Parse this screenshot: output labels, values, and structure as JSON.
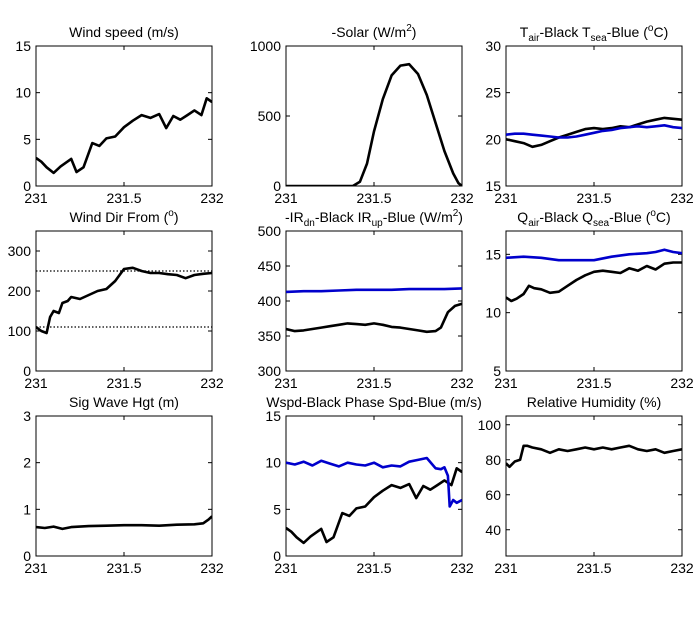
{
  "chart_data": [
    {
      "type": "line",
      "title": "Wind speed (m/s)",
      "xlim": [
        231,
        232
      ],
      "ylim": [
        0,
        15
      ],
      "xticks": [
        "231",
        "231.5",
        "232"
      ],
      "yticks": [
        "0",
        "5",
        "10",
        "15"
      ],
      "series": [
        {
          "color": "#000000",
          "x": [
            231,
            231.03,
            231.06,
            231.1,
            231.14,
            231.17,
            231.2,
            231.23,
            231.27,
            231.32,
            231.36,
            231.4,
            231.45,
            231.5,
            231.55,
            231.6,
            231.65,
            231.7,
            231.74,
            231.78,
            231.82,
            231.86,
            231.9,
            231.94,
            231.97,
            232
          ],
          "y": [
            3,
            2.6,
            2,
            1.4,
            2.1,
            2.5,
            2.9,
            1.5,
            2,
            4.6,
            4.3,
            5.1,
            5.3,
            6.3,
            7,
            7.6,
            7.3,
            7.7,
            6.2,
            7.5,
            7.1,
            7.6,
            8.1,
            7.6,
            9.4,
            9
          ]
        }
      ]
    },
    {
      "type": "line",
      "title_parts": [
        "-Solar (W/m",
        "2",
        ")"
      ],
      "xlim": [
        231,
        232
      ],
      "ylim": [
        0,
        1000
      ],
      "xticks": [
        "231",
        "231.5",
        "232"
      ],
      "yticks": [
        "0",
        "500",
        "1000"
      ],
      "series": [
        {
          "color": "#000000",
          "x": [
            231,
            231.38,
            231.42,
            231.46,
            231.5,
            231.55,
            231.6,
            231.65,
            231.7,
            231.75,
            231.8,
            231.85,
            231.9,
            231.95,
            231.98,
            232
          ],
          "y": [
            0,
            0,
            30,
            160,
            390,
            620,
            790,
            860,
            870,
            800,
            650,
            450,
            250,
            90,
            20,
            0
          ]
        }
      ]
    },
    {
      "type": "line",
      "title_parts": [
        "T",
        "air",
        "-Black  T",
        "sea",
        "-Blue (",
        "o",
        "C)"
      ],
      "xlim": [
        231,
        232
      ],
      "ylim": [
        15,
        30
      ],
      "xticks": [
        "231",
        "231.5",
        "232"
      ],
      "yticks": [
        "15",
        "20",
        "25",
        "30"
      ],
      "series": [
        {
          "color": "#000000",
          "x": [
            231,
            231.05,
            231.1,
            231.15,
            231.2,
            231.25,
            231.3,
            231.35,
            231.4,
            231.45,
            231.5,
            231.55,
            231.6,
            231.65,
            231.7,
            231.75,
            231.8,
            231.85,
            231.9,
            231.95,
            232
          ],
          "y": [
            20,
            19.8,
            19.6,
            19.2,
            19.4,
            19.8,
            20.2,
            20.5,
            20.8,
            21.1,
            21.2,
            21.1,
            21.2,
            21.4,
            21.3,
            21.6,
            21.9,
            22.1,
            22.3,
            22.2,
            22.1
          ]
        },
        {
          "color": "#0000cc",
          "x": [
            231,
            231.05,
            231.1,
            231.15,
            231.2,
            231.25,
            231.3,
            231.35,
            231.4,
            231.45,
            231.5,
            231.55,
            231.6,
            231.65,
            231.7,
            231.75,
            231.8,
            231.85,
            231.9,
            231.95,
            232
          ],
          "y": [
            20.5,
            20.6,
            20.6,
            20.5,
            20.4,
            20.3,
            20.2,
            20.2,
            20.3,
            20.5,
            20.7,
            20.9,
            21,
            21.2,
            21.3,
            21.4,
            21.3,
            21.4,
            21.5,
            21.3,
            21.2
          ]
        }
      ]
    },
    {
      "type": "line",
      "title_parts": [
        "Wind Dir From (",
        "o",
        ")"
      ],
      "xlim": [
        231,
        232
      ],
      "ylim": [
        0,
        350
      ],
      "xticks": [
        "231",
        "231.5",
        "232"
      ],
      "yticks": [
        "0",
        "100",
        "200",
        "300"
      ],
      "reference_lines": [
        110,
        250
      ],
      "series": [
        {
          "color": "#000000",
          "x": [
            231,
            231.03,
            231.06,
            231.08,
            231.1,
            231.13,
            231.15,
            231.18,
            231.2,
            231.25,
            231.3,
            231.35,
            231.4,
            231.45,
            231.5,
            231.55,
            231.6,
            231.65,
            231.7,
            231.75,
            231.8,
            231.85,
            231.9,
            231.95,
            232
          ],
          "y": [
            110,
            100,
            95,
            135,
            150,
            145,
            170,
            175,
            185,
            180,
            190,
            200,
            205,
            225,
            255,
            258,
            250,
            245,
            245,
            242,
            240,
            232,
            240,
            243,
            245
          ]
        }
      ]
    },
    {
      "type": "line",
      "title_parts": [
        "-IR",
        "dn",
        "-Black  IR",
        "up",
        "-Blue (W/m",
        "2",
        ")"
      ],
      "xlim": [
        231,
        232
      ],
      "ylim": [
        300,
        500
      ],
      "xticks": [
        "231",
        "231.5",
        "232"
      ],
      "yticks": [
        "300",
        "350",
        "400",
        "450",
        "500"
      ],
      "series": [
        {
          "color": "#000000",
          "x": [
            231,
            231.05,
            231.1,
            231.15,
            231.2,
            231.25,
            231.3,
            231.35,
            231.4,
            231.45,
            231.5,
            231.55,
            231.6,
            231.65,
            231.7,
            231.75,
            231.8,
            231.85,
            231.88,
            231.92,
            231.96,
            232
          ],
          "y": [
            360,
            357,
            358,
            360,
            362,
            364,
            366,
            368,
            367,
            366,
            368,
            366,
            363,
            362,
            360,
            358,
            356,
            357,
            362,
            384,
            393,
            396
          ]
        },
        {
          "color": "#0000cc",
          "x": [
            231,
            231.1,
            231.2,
            231.3,
            231.4,
            231.5,
            231.6,
            231.7,
            231.8,
            231.9,
            232
          ],
          "y": [
            413,
            414,
            414,
            415,
            416,
            416,
            416,
            417,
            417,
            417,
            418
          ]
        }
      ]
    },
    {
      "type": "line",
      "title_parts": [
        "Q",
        "air",
        "-Black  Q",
        "sea",
        "-Blue (",
        "o",
        "C)"
      ],
      "xlim": [
        231,
        232
      ],
      "ylim": [
        5,
        17
      ],
      "xticks": [
        "231",
        "231.5",
        "232"
      ],
      "yticks": [
        "5",
        "10",
        "15"
      ],
      "series": [
        {
          "color": "#000000",
          "x": [
            231,
            231.03,
            231.06,
            231.1,
            231.13,
            231.16,
            231.2,
            231.25,
            231.3,
            231.35,
            231.4,
            231.45,
            231.5,
            231.55,
            231.6,
            231.65,
            231.7,
            231.75,
            231.8,
            231.85,
            231.9,
            231.95,
            232
          ],
          "y": [
            11.3,
            11,
            11.2,
            11.6,
            12.3,
            12.1,
            12,
            11.7,
            11.8,
            12.3,
            12.8,
            13.2,
            13.5,
            13.6,
            13.5,
            13.4,
            13.8,
            13.6,
            14,
            13.7,
            14.2,
            14.3,
            14.3
          ]
        },
        {
          "color": "#0000cc",
          "x": [
            231,
            231.1,
            231.2,
            231.3,
            231.4,
            231.5,
            231.6,
            231.7,
            231.8,
            231.85,
            231.9,
            231.95,
            232
          ],
          "y": [
            14.7,
            14.8,
            14.7,
            14.5,
            14.5,
            14.5,
            14.8,
            15,
            15.1,
            15.2,
            15.4,
            15.2,
            15.1
          ]
        }
      ]
    },
    {
      "type": "line",
      "title": "Sig Wave Hgt (m)",
      "xlim": [
        231,
        232
      ],
      "ylim": [
        0,
        3
      ],
      "xticks": [
        "231",
        "231.5",
        "232"
      ],
      "yticks": [
        "0",
        "1",
        "2",
        "3"
      ],
      "series": [
        {
          "color": "#000000",
          "x": [
            231,
            231.05,
            231.1,
            231.15,
            231.2,
            231.3,
            231.4,
            231.5,
            231.6,
            231.7,
            231.8,
            231.9,
            231.95,
            231.98,
            232
          ],
          "y": [
            0.62,
            0.6,
            0.63,
            0.58,
            0.62,
            0.64,
            0.65,
            0.66,
            0.66,
            0.65,
            0.67,
            0.68,
            0.7,
            0.78,
            0.85
          ]
        }
      ]
    },
    {
      "type": "line",
      "title": "Wspd-Black  Phase Spd-Blue (m/s)",
      "xlim": [
        231,
        232
      ],
      "ylim": [
        0,
        15
      ],
      "xticks": [
        "231",
        "231.5",
        "232"
      ],
      "yticks": [
        "0",
        "5",
        "10",
        "15"
      ],
      "series": [
        {
          "color": "#000000",
          "x": [
            231,
            231.03,
            231.06,
            231.1,
            231.14,
            231.17,
            231.2,
            231.23,
            231.27,
            231.32,
            231.36,
            231.4,
            231.45,
            231.5,
            231.55,
            231.6,
            231.65,
            231.7,
            231.74,
            231.78,
            231.82,
            231.86,
            231.9,
            231.94,
            231.97,
            232
          ],
          "y": [
            3,
            2.6,
            2,
            1.4,
            2.1,
            2.5,
            2.9,
            1.5,
            2,
            4.6,
            4.3,
            5.1,
            5.3,
            6.3,
            7,
            7.6,
            7.3,
            7.7,
            6.2,
            7.5,
            7.1,
            7.6,
            8.1,
            7.6,
            9.4,
            9
          ]
        },
        {
          "color": "#0000cc",
          "x": [
            231,
            231.05,
            231.1,
            231.15,
            231.2,
            231.25,
            231.3,
            231.35,
            231.4,
            231.45,
            231.5,
            231.55,
            231.6,
            231.65,
            231.7,
            231.75,
            231.8,
            231.85,
            231.88,
            231.9,
            231.92,
            231.93,
            231.95,
            231.97,
            232
          ],
          "y": [
            10,
            9.8,
            10.1,
            9.7,
            10.2,
            9.9,
            9.6,
            10,
            9.8,
            9.7,
            10,
            9.5,
            9.7,
            9.6,
            10.1,
            10.3,
            10.5,
            9.4,
            9.3,
            9.5,
            8.6,
            5.3,
            6,
            5.7,
            6
          ]
        }
      ]
    },
    {
      "type": "line",
      "title": "Relative Humidity (%)",
      "xlim": [
        231,
        232
      ],
      "ylim": [
        25,
        105
      ],
      "xticks": [
        "231",
        "231.5",
        "232"
      ],
      "yticks": [
        "40",
        "60",
        "80",
        "100"
      ],
      "series": [
        {
          "color": "#000000",
          "x": [
            231,
            231.02,
            231.05,
            231.08,
            231.1,
            231.12,
            231.15,
            231.2,
            231.25,
            231.3,
            231.35,
            231.4,
            231.45,
            231.5,
            231.55,
            231.6,
            231.65,
            231.7,
            231.75,
            231.8,
            231.85,
            231.9,
            231.95,
            232
          ],
          "y": [
            78,
            76,
            79,
            80,
            88,
            88,
            87,
            86,
            84,
            86,
            85,
            86,
            87,
            86,
            87,
            86,
            87,
            88,
            86,
            85,
            86,
            84,
            85,
            86
          ]
        }
      ]
    }
  ]
}
